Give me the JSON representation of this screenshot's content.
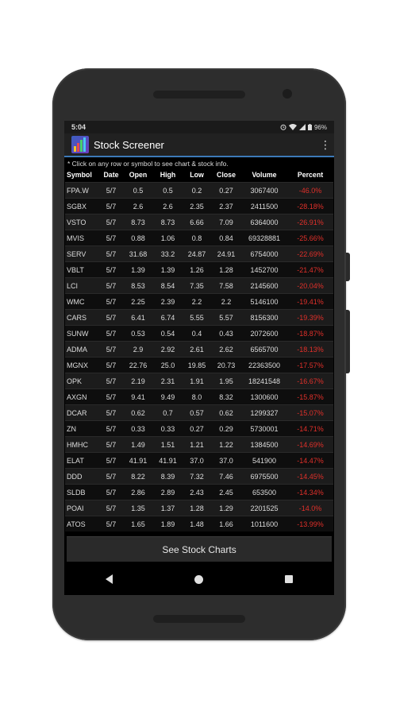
{
  "status": {
    "time": "5:04",
    "battery": "96%"
  },
  "app": {
    "title": "Stock Screener"
  },
  "notice": "* Click on any row or symbol to see chart & stock info.",
  "columns": [
    "Symbol",
    "Date",
    "Open",
    "High",
    "Low",
    "Close",
    "Volume",
    "Percent"
  ],
  "rows": [
    [
      "FPA.W",
      "5/7",
      "0.5",
      "0.5",
      "0.2",
      "0.27",
      "3067400",
      "-46.0%"
    ],
    [
      "SGBX",
      "5/7",
      "2.6",
      "2.6",
      "2.35",
      "2.37",
      "2411500",
      "-28.18%"
    ],
    [
      "VSTO",
      "5/7",
      "8.73",
      "8.73",
      "6.66",
      "7.09",
      "6364000",
      "-26.91%"
    ],
    [
      "MVIS",
      "5/7",
      "0.88",
      "1.06",
      "0.8",
      "0.84",
      "69328881",
      "-25.66%"
    ],
    [
      "SERV",
      "5/7",
      "31.68",
      "33.2",
      "24.87",
      "24.91",
      "6754000",
      "-22.69%"
    ],
    [
      "VBLT",
      "5/7",
      "1.39",
      "1.39",
      "1.26",
      "1.28",
      "1452700",
      "-21.47%"
    ],
    [
      "LCI",
      "5/7",
      "8.53",
      "8.54",
      "7.35",
      "7.58",
      "2145600",
      "-20.04%"
    ],
    [
      "WMC",
      "5/7",
      "2.25",
      "2.39",
      "2.2",
      "2.2",
      "5146100",
      "-19.41%"
    ],
    [
      "CARS",
      "5/7",
      "6.41",
      "6.74",
      "5.55",
      "5.57",
      "8156300",
      "-19.39%"
    ],
    [
      "SUNW",
      "5/7",
      "0.53",
      "0.54",
      "0.4",
      "0.43",
      "2072600",
      "-18.87%"
    ],
    [
      "ADMA",
      "5/7",
      "2.9",
      "2.92",
      "2.61",
      "2.62",
      "6565700",
      "-18.13%"
    ],
    [
      "MGNX",
      "5/7",
      "22.76",
      "25.0",
      "19.85",
      "20.73",
      "22363500",
      "-17.57%"
    ],
    [
      "OPK",
      "5/7",
      "2.19",
      "2.31",
      "1.91",
      "1.95",
      "18241548",
      "-16.67%"
    ],
    [
      "AXGN",
      "5/7",
      "9.41",
      "9.49",
      "8.0",
      "8.32",
      "1300600",
      "-15.87%"
    ],
    [
      "DCAR",
      "5/7",
      "0.62",
      "0.7",
      "0.57",
      "0.62",
      "1299327",
      "-15.07%"
    ],
    [
      "ZN",
      "5/7",
      "0.33",
      "0.33",
      "0.27",
      "0.29",
      "5730001",
      "-14.71%"
    ],
    [
      "HMHC",
      "5/7",
      "1.49",
      "1.51",
      "1.21",
      "1.22",
      "1384500",
      "-14.69%"
    ],
    [
      "ELAT",
      "5/7",
      "41.91",
      "41.91",
      "37.0",
      "37.0",
      "541900",
      "-14.47%"
    ],
    [
      "DDD",
      "5/7",
      "8.22",
      "8.39",
      "7.32",
      "7.46",
      "6975500",
      "-14.45%"
    ],
    [
      "SLDB",
      "5/7",
      "2.86",
      "2.89",
      "2.43",
      "2.45",
      "653500",
      "-14.34%"
    ],
    [
      "POAI",
      "5/7",
      "1.35",
      "1.37",
      "1.28",
      "1.29",
      "2201525",
      "-14.0%"
    ],
    [
      "ATOS",
      "5/7",
      "1.65",
      "1.89",
      "1.48",
      "1.66",
      "1011600",
      "-13.99%"
    ]
  ],
  "button": {
    "label": "See Stock Charts"
  },
  "icons": {
    "alarm": "alarm-icon",
    "wifi": "wifi-icon",
    "signal": "signal-icon",
    "battery": "battery-icon",
    "overflow": "overflow-menu-icon",
    "back": "back-icon",
    "home": "home-icon",
    "recents": "recents-icon"
  },
  "colors": {
    "negative": "#e0302a",
    "accent": "#3d7ab8"
  }
}
